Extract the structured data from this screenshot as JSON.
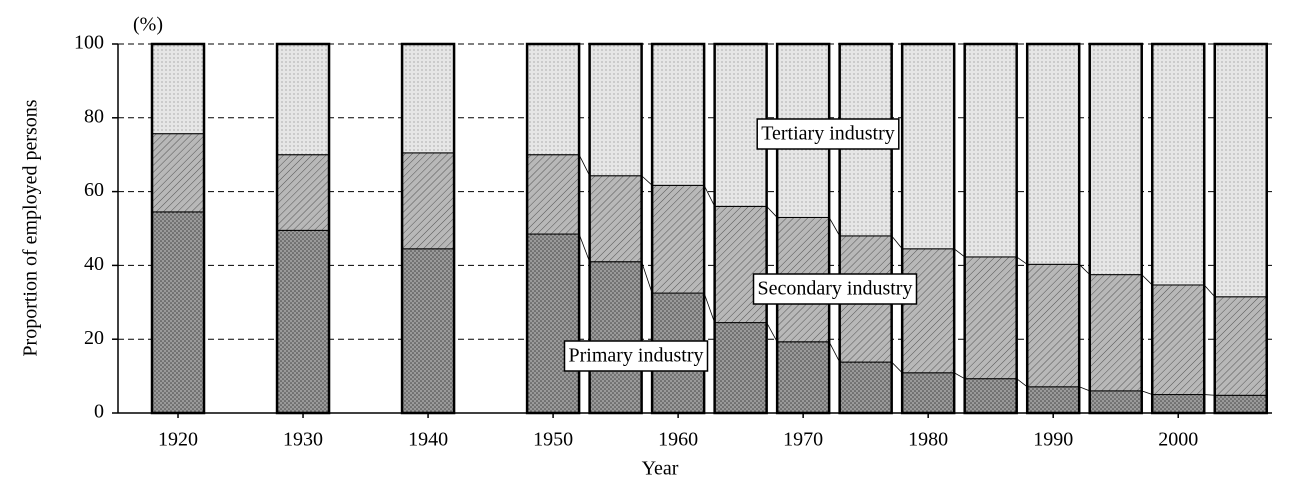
{
  "chart_data": {
    "type": "stacked_bar",
    "unit": "(%)",
    "x_label": "Year",
    "y_label": "Proportion of employed persons",
    "x": [
      1920,
      1930,
      1940,
      1950,
      1955,
      1960,
      1965,
      1970,
      1975,
      1980,
      1985,
      1990,
      1995,
      2000,
      2005
    ],
    "series": [
      {
        "name": "Primary industry",
        "color": "#9a9a9a",
        "values": [
          54.5,
          49.5,
          44.5,
          48.5,
          41,
          32.5,
          24.5,
          19.3,
          13.8,
          10.9,
          9.3,
          7.1,
          6.0,
          5.0,
          4.8
        ]
      },
      {
        "name": "Secondary industry",
        "color": "#b8b8b8",
        "values": [
          21.2,
          20.5,
          26,
          21.5,
          23.3,
          29.2,
          31.5,
          33.7,
          34.2,
          33.6,
          33,
          33.2,
          31.5,
          29.7,
          26.7
        ]
      },
      {
        "name": "Tertiary industry",
        "color": "#e6e6e6",
        "values": [
          24.3,
          30,
          29.5,
          30,
          35.7,
          38.3,
          44,
          47,
          52,
          55.5,
          57.7,
          59.7,
          62.5,
          65.3,
          68.5
        ]
      }
    ],
    "xlim": [
      1915.2,
      2007.5
    ],
    "xticks": [
      1920,
      1930,
      1940,
      1950,
      1960,
      1970,
      1980,
      1990,
      2000
    ],
    "ylim": [
      0,
      100
    ],
    "yticks": [
      0,
      20,
      40,
      60,
      80,
      100
    ],
    "grid": true
  }
}
